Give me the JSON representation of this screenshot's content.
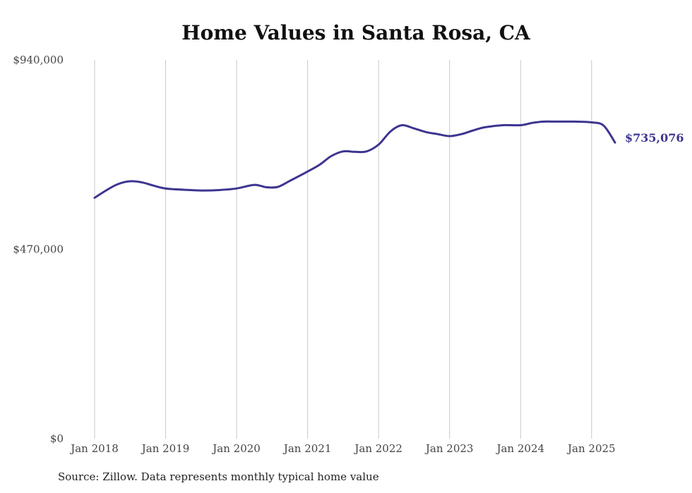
{
  "chart_data": {
    "type": "line",
    "title": "Home Values in Santa Rosa, CA",
    "xlabel": "",
    "ylabel": "",
    "ylim": [
      0,
      940000
    ],
    "y_ticks": [
      {
        "value": 0,
        "label": "$0"
      },
      {
        "value": 470000,
        "label": "$470,000"
      },
      {
        "value": 940000,
        "label": "$940,000"
      }
    ],
    "x_ticks": [
      {
        "value": 2018.0,
        "label": "Jan 2018"
      },
      {
        "value": 2019.0,
        "label": "Jan 2019"
      },
      {
        "value": 2020.0,
        "label": "Jan 2020"
      },
      {
        "value": 2021.0,
        "label": "Jan 2021"
      },
      {
        "value": 2022.0,
        "label": "Jan 2022"
      },
      {
        "value": 2023.0,
        "label": "Jan 2023"
      },
      {
        "value": 2024.0,
        "label": "Jan 2024"
      },
      {
        "value": 2025.0,
        "label": "Jan 2025"
      }
    ],
    "xlim": [
      2018.0,
      2025.37
    ],
    "grid": "vertical",
    "line_color": "#3d3590",
    "series": [
      {
        "x": [
          2018.0,
          2018.17,
          2018.33,
          2018.5,
          2018.67,
          2018.83,
          2019.0,
          2019.25,
          2019.5,
          2019.75,
          2020.0,
          2020.25,
          2020.42,
          2020.58,
          2020.75,
          2021.0,
          2021.17,
          2021.33,
          2021.5,
          2021.67,
          2021.83,
          2022.0,
          2022.17,
          2022.33,
          2022.5,
          2022.67,
          2022.83,
          2023.0,
          2023.17,
          2023.33,
          2023.5,
          2023.75,
          2024.0,
          2024.17,
          2024.33,
          2024.5,
          2024.75,
          2025.0,
          2025.17,
          2025.33
        ],
        "y": [
          598000,
          617000,
          632000,
          639000,
          636000,
          628000,
          621000,
          618000,
          616000,
          617000,
          621000,
          630000,
          624000,
          625000,
          640000,
          663000,
          680000,
          701000,
          713000,
          712000,
          713000,
          730000,
          763000,
          778000,
          770000,
          761000,
          756000,
          751000,
          756000,
          765000,
          773000,
          778000,
          778000,
          784000,
          787000,
          787000,
          787000,
          785000,
          777000,
          735076
        ]
      }
    ],
    "end_label": "$735,076"
  },
  "footer": {
    "source": "Source: Zillow. Data represents monthly typical home value"
  }
}
